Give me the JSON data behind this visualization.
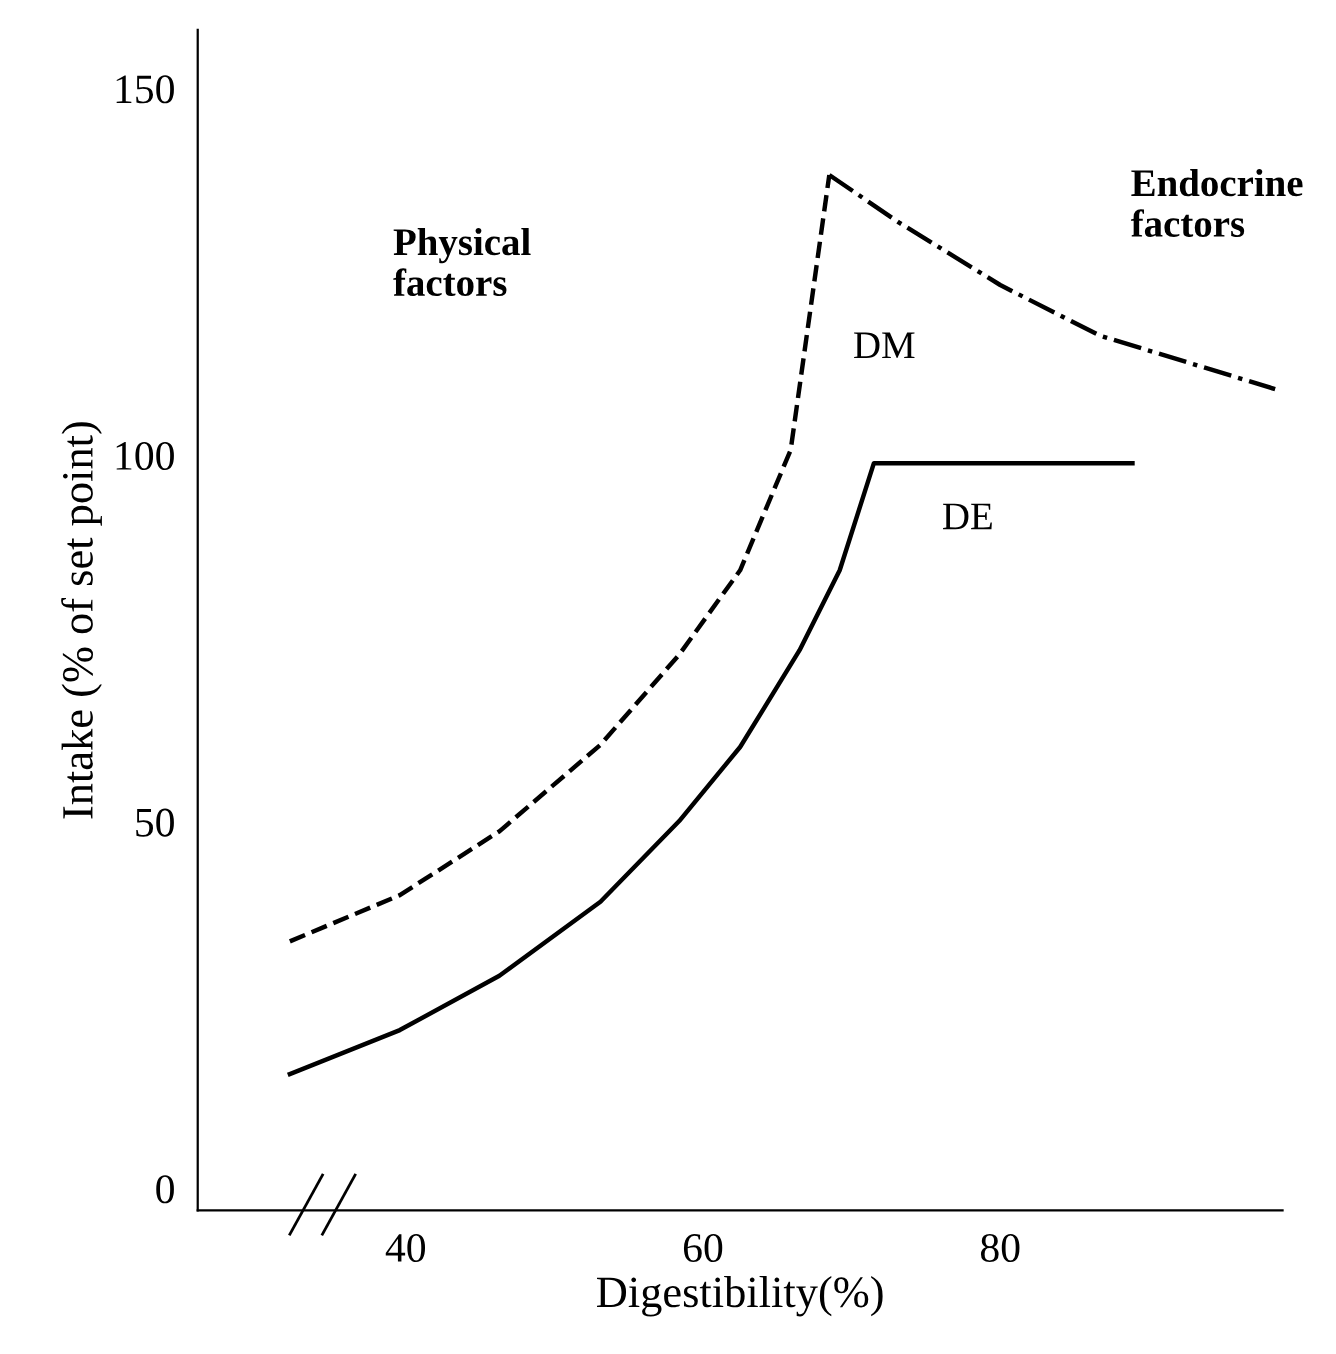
{
  "chart_data": {
    "type": "line",
    "xlabel": "Digestibility(%)",
    "ylabel": "Intake (% of set point)",
    "xlim": [
      26,
      99
    ],
    "ylim": [
      -3,
      158
    ],
    "xticks": [
      40,
      60,
      80
    ],
    "yticks": [
      0,
      50,
      100,
      150
    ],
    "grid": false,
    "legend": false,
    "marker": "none",
    "series": [
      {
        "color": "#000000",
        "line_style": "dashed",
        "x": [
          32.2,
          39.6,
          46.3,
          53.1,
          58.4,
          62.5,
          65.9,
          68.5
        ],
        "values": [
          33.7,
          40.0,
          48.7,
          60.5,
          72.8,
          84.3,
          100.7,
          138.2
        ]
      },
      {
        "color": "#000000",
        "line_style": "dashdot",
        "x": [
          68.5,
          73.2,
          80.0,
          86.7,
          98.5
        ],
        "values": [
          138.2,
          131.7,
          123.2,
          116.3,
          109
        ]
      },
      {
        "color": "#000000",
        "line_style": "solid",
        "x": [
          32.2,
          39.6,
          46.3,
          53.1,
          58.4,
          62.5,
          66.5,
          69.2,
          71.5,
          88.9
        ],
        "values": [
          15.6,
          21.6,
          29.0,
          39.1,
          50.1,
          60.2,
          73.4,
          84.3,
          98.9,
          98.9
        ]
      }
    ],
    "annotations": [
      "DM",
      "DE",
      "Physical\nfactors",
      "Endocrine\nfactors"
    ]
  }
}
